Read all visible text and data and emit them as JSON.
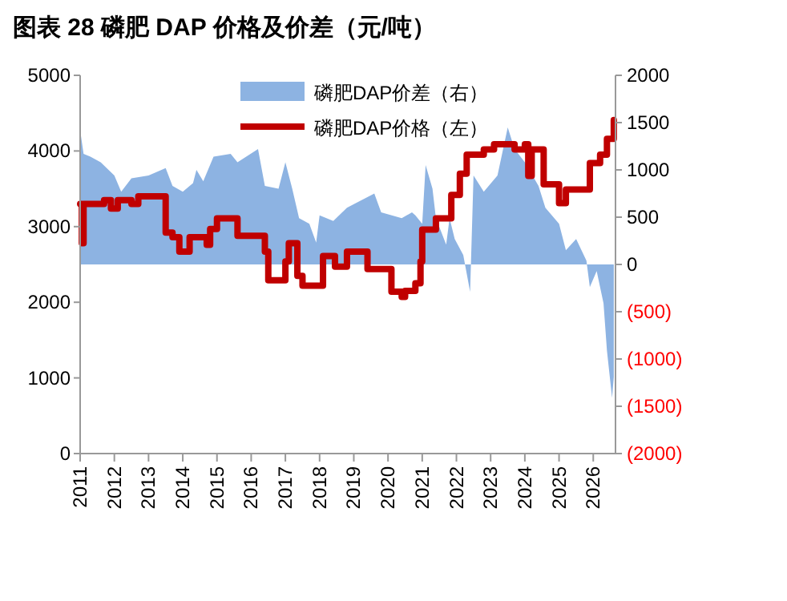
{
  "chart_data": {
    "type": "step",
    "title": "图表 28 磷肥 DAP 价格及价差（元/吨）",
    "legend": "top",
    "xlim": [
      2011,
      2026.65
    ],
    "xticks": [
      2011,
      2012,
      2013,
      2014,
      2015,
      2016,
      2017,
      2018,
      2019,
      2020,
      2021,
      2022,
      2023,
      2024,
      2025,
      2026
    ],
    "ylim": [
      0,
      5000
    ],
    "yticks": [
      0,
      1000,
      2000,
      3000,
      4000,
      5000
    ],
    "y2lim": [
      -2000,
      2000
    ],
    "y2ticks": [
      2000,
      1500,
      1000,
      500,
      0,
      {
        "value": -500,
        "label": "(500)"
      },
      {
        "value": -1000,
        "label": "(1000)"
      },
      {
        "value": -1500,
        "label": "(1500)"
      },
      {
        "value": -2000,
        "label": "(2000)"
      }
    ],
    "series": [
      {
        "name": "磷肥DAP价差（右）",
        "type": "area",
        "axis": "y2",
        "color": "#8db3e2",
        "x": [
          2011,
          2011.1,
          2011.3,
          2011.6,
          2012,
          2012.2,
          2012.5,
          2013,
          2013.5,
          2013.7,
          2014,
          2014.3,
          2014.4,
          2014.6,
          2014.9,
          2015.4,
          2015.6,
          2016.2,
          2016.4,
          2016.8,
          2017,
          2017.2,
          2017.4,
          2017.7,
          2017.9,
          2018,
          2018.4,
          2018.8,
          2019.6,
          2019.8,
          2020.4,
          2020.7,
          2020.8,
          2021,
          2021.1,
          2021.3,
          2021.4,
          2021.7,
          2021.8,
          2021.95,
          2022.2,
          2022.4,
          2022.5,
          2022.8,
          2023.2,
          2023.5,
          2023.7,
          2024,
          2024.4,
          2024.6,
          2025,
          2025.2,
          2025.5,
          2025.8,
          2025.9,
          2026.1,
          2026.3,
          2026.4,
          2026.55,
          2026.6
        ],
        "values": [
          1420,
          1170,
          1140,
          1080,
          940,
          770,
          910,
          940,
          1020,
          830,
          770,
          860,
          1000,
          880,
          1140,
          1170,
          1080,
          1220,
          830,
          800,
          1080,
          800,
          490,
          430,
          230,
          520,
          460,
          600,
          750,
          550,
          490,
          550,
          520,
          430,
          1050,
          800,
          490,
          210,
          490,
          270,
          100,
          -290,
          940,
          770,
          940,
          1450,
          1220,
          1080,
          830,
          600,
          430,
          150,
          270,
          40,
          -240,
          -70,
          -410,
          -910,
          -1410,
          -1190
        ]
      },
      {
        "name": "磷肥DAP价格（左）",
        "color": "#c00000",
        "x": [
          2011,
          2011.05,
          2011.1,
          2011.7,
          2011.9,
          2012.1,
          2012.5,
          2012.7,
          2013.2,
          2013.5,
          2013.7,
          2013.9,
          2014.2,
          2014.6,
          2014.7,
          2014.8,
          2015,
          2015.6,
          2016.3,
          2016.4,
          2016.5,
          2016.9,
          2017,
          2017.1,
          2017.3,
          2017.35,
          2017.5,
          2018,
          2018.1,
          2018.4,
          2018.45,
          2018.8,
          2019.3,
          2019.4,
          2020,
          2020.1,
          2020.4,
          2020.5,
          2020.8,
          2020.95,
          2021,
          2021.4,
          2021.85,
          2022.1,
          2022.3,
          2022.8,
          2023.1,
          2023.7,
          2024,
          2024.1,
          2024.2,
          2024.55,
          2025,
          2025.2,
          2025.9,
          2026.2,
          2026.4,
          2026.6
        ],
        "values": [
          3300,
          2780,
          3300,
          3350,
          3240,
          3350,
          3300,
          3400,
          3400,
          2920,
          2860,
          2670,
          2860,
          2860,
          2760,
          2970,
          3110,
          2880,
          2880,
          2670,
          2290,
          2290,
          2540,
          2780,
          2780,
          2350,
          2220,
          2220,
          2610,
          2610,
          2470,
          2670,
          2670,
          2440,
          2440,
          2140,
          2070,
          2150,
          2250,
          2540,
          2960,
          3110,
          3420,
          3700,
          3950,
          4020,
          4090,
          4020,
          4090,
          3670,
          4020,
          3560,
          3310,
          3490,
          3840,
          3950,
          4160,
          4410
        ]
      }
    ]
  }
}
